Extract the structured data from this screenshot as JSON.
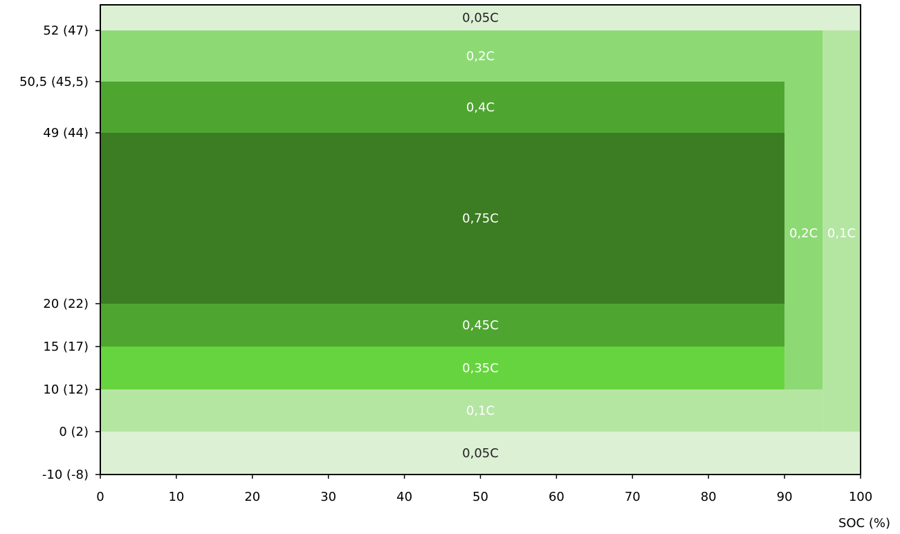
{
  "chart_data": {
    "type": "heatmap",
    "title": "",
    "xlabel": "SOC (%)",
    "ylabel": "",
    "xlim": [
      0,
      100
    ],
    "x_ticks": [
      "0",
      "10",
      "20",
      "30",
      "40",
      "50",
      "60",
      "70",
      "80",
      "90",
      "100"
    ],
    "y_ticks": [
      "52 (47)",
      "50,5 (45,5)",
      "49 (44)",
      "20 (22)",
      "15 (17)",
      "10 (12)",
      "0 (2)",
      "-10 (-8)"
    ],
    "y_tick_positions": [
      52,
      50.5,
      49,
      20,
      15,
      10,
      0,
      -10
    ],
    "ylim": [
      -10,
      52
    ],
    "zones": [
      {
        "label": "0,05C",
        "soc_min": 0,
        "soc_max": 100,
        "temp_min": 52,
        "temp_max": 53.5,
        "color": "#dcf0d4",
        "text_color": "#222222"
      },
      {
        "label": "0,1C",
        "soc_min": 95,
        "soc_max": 100,
        "temp_min": 0,
        "temp_max": 52,
        "color": "#b4e6a2",
        "text_color": "#ffffff"
      },
      {
        "label": "0,2C",
        "soc_min": 0,
        "soc_max": 95,
        "temp_min": 50.5,
        "temp_max": 52,
        "color": "#8dda75",
        "text_color": "#ffffff"
      },
      {
        "label": "0,2C",
        "soc_min": 90,
        "soc_max": 95,
        "temp_min": 10,
        "temp_max": 50.5,
        "color": "#8dda75",
        "text_color": "#ffffff"
      },
      {
        "label": "0,4C",
        "soc_min": 0,
        "soc_max": 90,
        "temp_min": 49,
        "temp_max": 50.5,
        "color": "#4ea630",
        "text_color": "#ffffff"
      },
      {
        "label": "0,75C",
        "soc_min": 0,
        "soc_max": 90,
        "temp_min": 20,
        "temp_max": 49,
        "color": "#3c7c22",
        "text_color": "#ffffff"
      },
      {
        "label": "0,45C",
        "soc_min": 0,
        "soc_max": 90,
        "temp_min": 15,
        "temp_max": 20,
        "color": "#4ea630",
        "text_color": "#ffffff"
      },
      {
        "label": "0,35C",
        "soc_min": 0,
        "soc_max": 90,
        "temp_min": 10,
        "temp_max": 15,
        "color": "#66d43e",
        "text_color": "#ffffff"
      },
      {
        "label": "0,1C",
        "soc_min": 0,
        "soc_max": 95,
        "temp_min": 0,
        "temp_max": 10,
        "color": "#b4e6a2",
        "text_color": "#ffffff"
      },
      {
        "label": "0,05C",
        "soc_min": 0,
        "soc_max": 100,
        "temp_min": -10,
        "temp_max": 0,
        "color": "#dcf0d4",
        "text_color": "#222222"
      }
    ]
  }
}
